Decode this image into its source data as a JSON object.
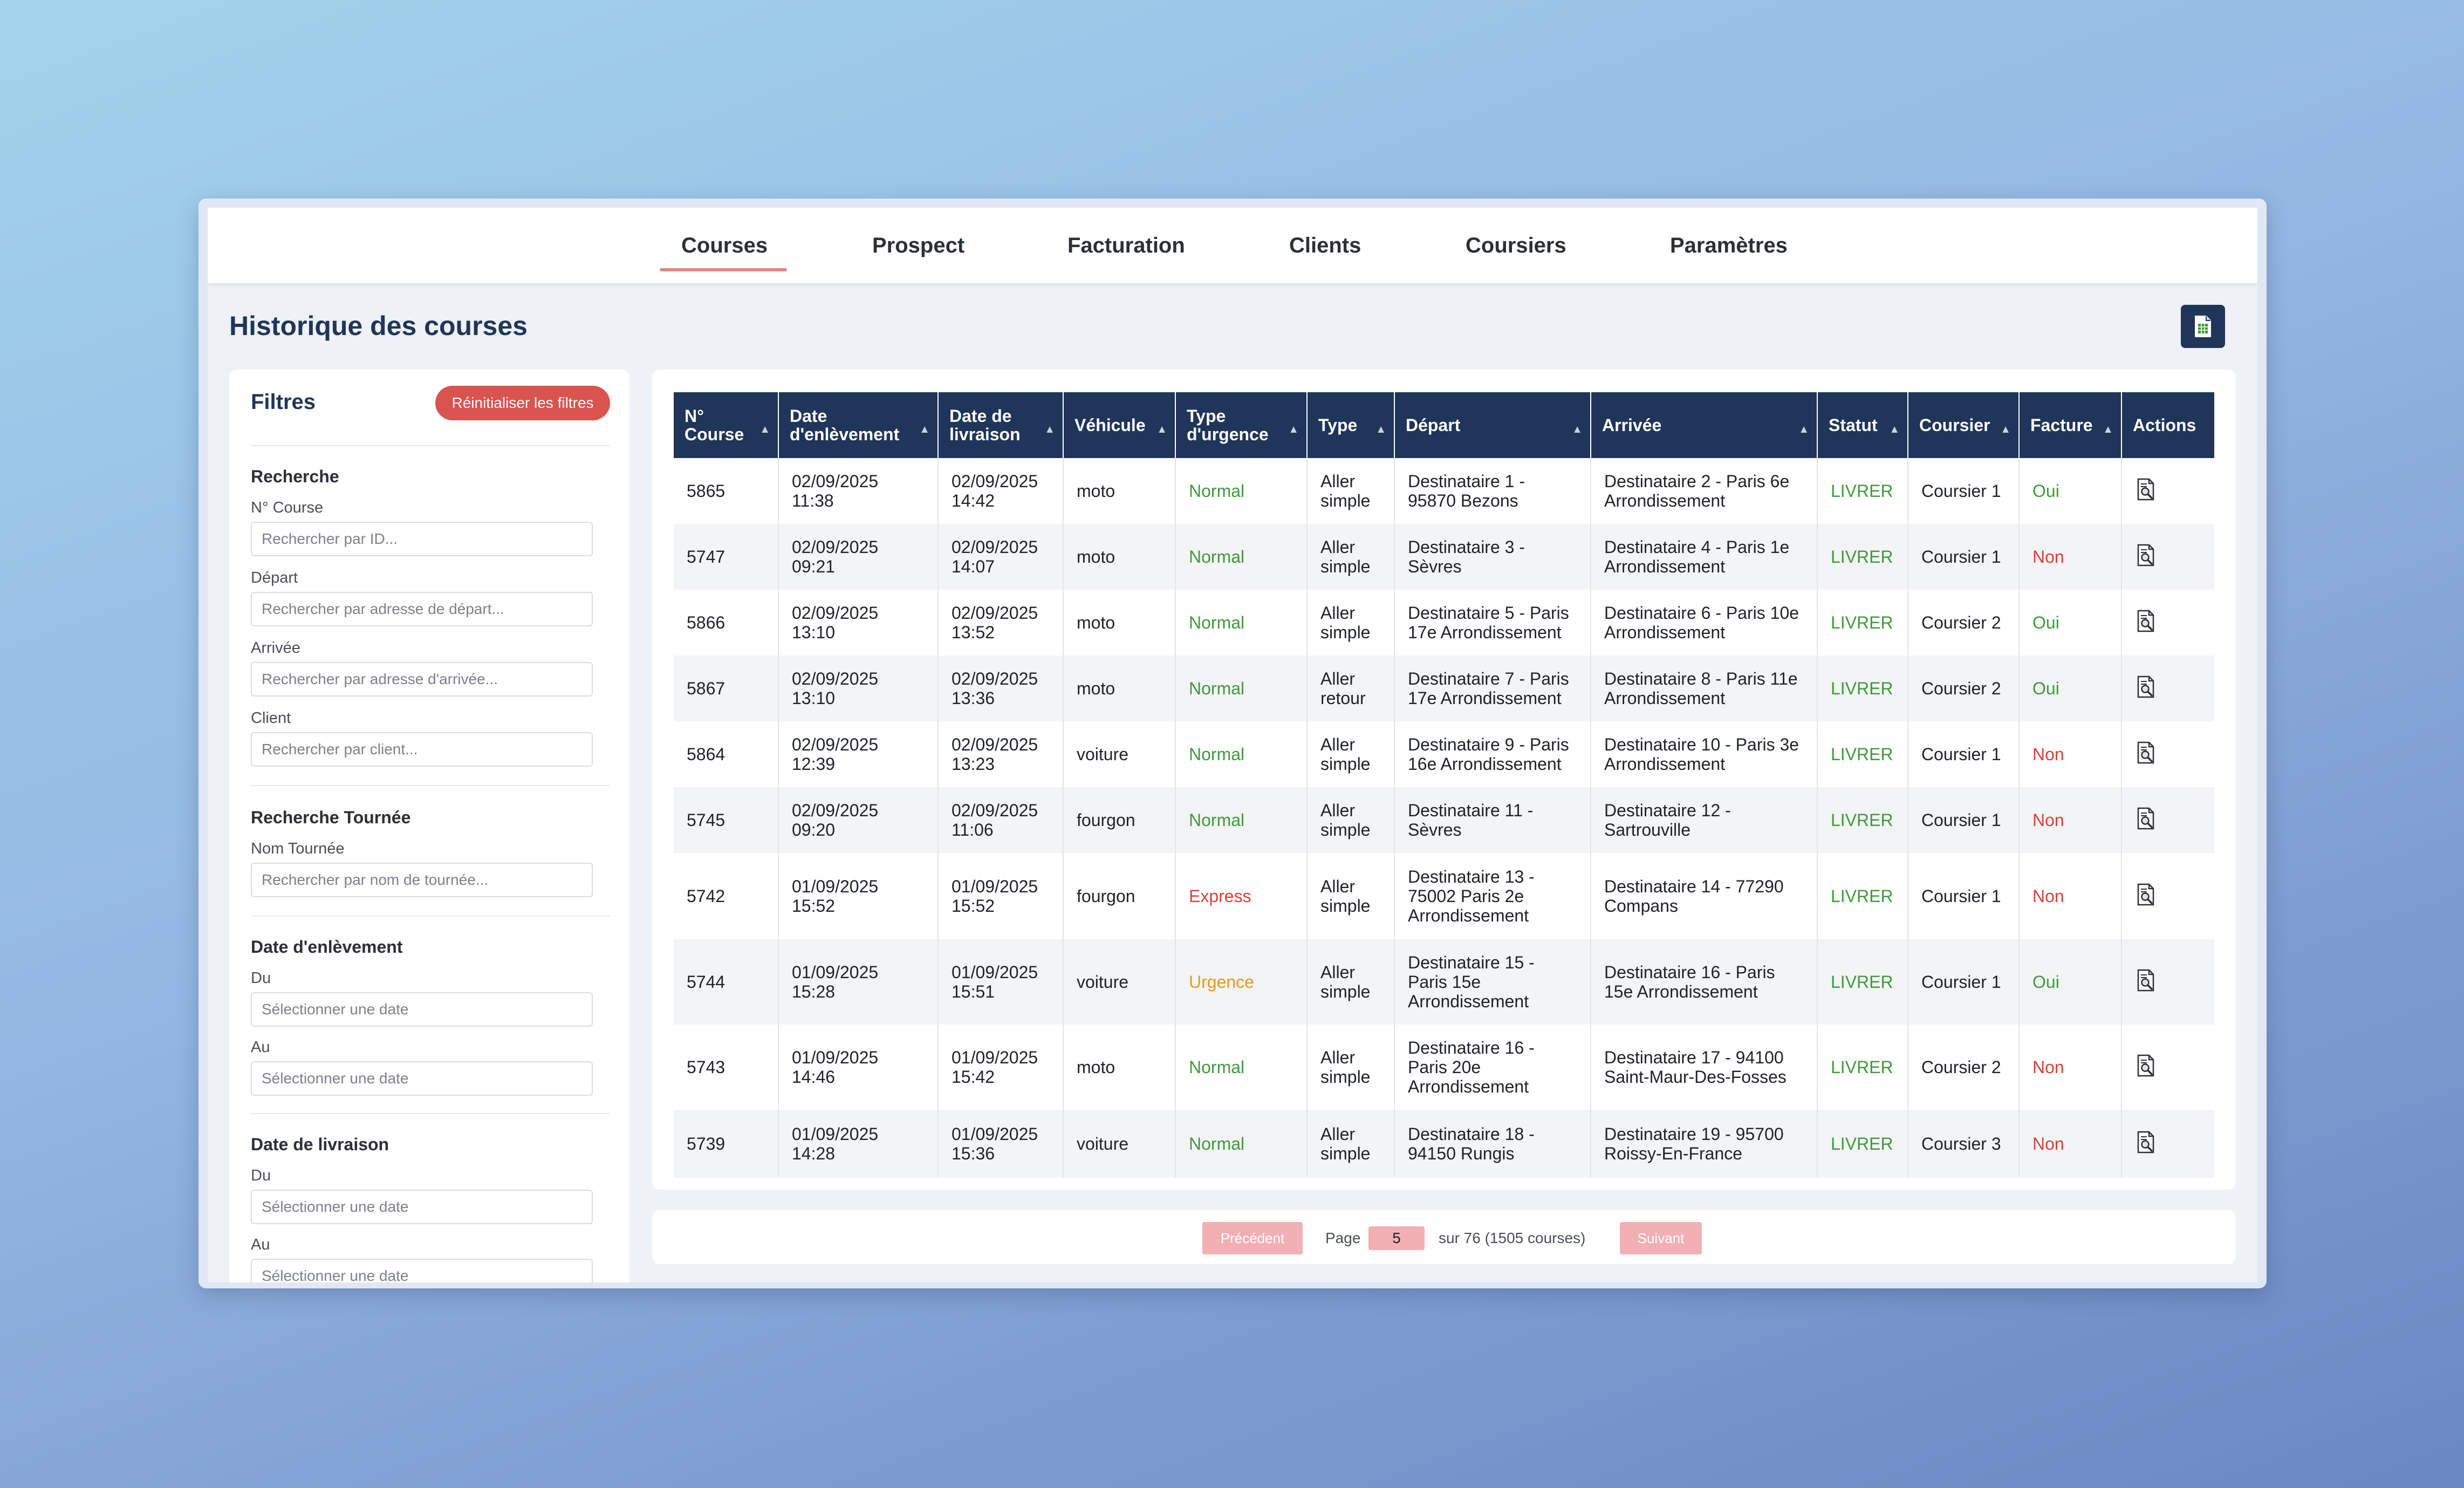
{
  "nav": {
    "tabs": [
      {
        "label": "Courses",
        "active": true
      },
      {
        "label": "Prospect"
      },
      {
        "label": "Facturation"
      },
      {
        "label": "Clients"
      },
      {
        "label": "Coursiers"
      },
      {
        "label": "Paramètres"
      }
    ]
  },
  "page": {
    "title": "Historique des courses",
    "export_icon": "spreadsheet-icon"
  },
  "filters": {
    "title": "Filtres",
    "reset_label": "Réinitialiser les filtres",
    "search": {
      "title": "Recherche",
      "course_label": "N° Course",
      "course_placeholder": "Rechercher par ID...",
      "depart_label": "Départ",
      "depart_placeholder": "Rechercher par adresse de départ...",
      "arrivee_label": "Arrivée",
      "arrivee_placeholder": "Rechercher par adresse d'arrivée...",
      "client_label": "Client",
      "client_placeholder": "Rechercher par client..."
    },
    "tournee": {
      "title": "Recherche Tournée",
      "label": "Nom Tournée",
      "placeholder": "Rechercher par nom de tournée..."
    },
    "pickup_date": {
      "title": "Date d'enlèvement",
      "from_label": "Du",
      "from_placeholder": "Sélectionner une date",
      "to_label": "Au",
      "to_placeholder": "Sélectionner une date"
    },
    "delivery_date": {
      "title": "Date de livraison",
      "from_label": "Du",
      "from_placeholder": "Sélectionner une date",
      "to_label": "Au",
      "to_placeholder": "Sélectionner une date"
    }
  },
  "table": {
    "headers": [
      "N° Course",
      "Date d'enlèvement",
      "Date de livraison",
      "Véhicule",
      "Type d'urgence",
      "Type",
      "Départ",
      "Arrivée",
      "Statut",
      "Coursier",
      "Facture",
      "Actions"
    ],
    "rows": [
      {
        "id": "5865",
        "pickup": "02/09/2025 11:38",
        "delivery": "02/09/2025 14:42",
        "vehicle": "moto",
        "urgency": "Normal",
        "type": "Aller simple",
        "depart": "Destinataire 1 - 95870 Bezons",
        "arrivee": "Destinataire 2 - Paris 6e Arrondissement",
        "status": "LIVRER",
        "courier": "Coursier 1",
        "invoice": "Oui"
      },
      {
        "id": "5747",
        "pickup": "02/09/2025 09:21",
        "delivery": "02/09/2025 14:07",
        "vehicle": "moto",
        "urgency": "Normal",
        "type": "Aller simple",
        "depart": "Destinataire 3 - Sèvres",
        "arrivee": "Destinataire 4 - Paris 1e Arrondissement",
        "status": "LIVRER",
        "courier": "Coursier 1",
        "invoice": "Non"
      },
      {
        "id": "5866",
        "pickup": "02/09/2025 13:10",
        "delivery": "02/09/2025 13:52",
        "vehicle": "moto",
        "urgency": "Normal",
        "type": "Aller simple",
        "depart": "Destinataire 5 - Paris 17e Arrondissement",
        "arrivee": "Destinataire 6 - Paris 10e Arrondissement",
        "status": "LIVRER",
        "courier": "Coursier 2",
        "invoice": "Oui"
      },
      {
        "id": "5867",
        "pickup": "02/09/2025 13:10",
        "delivery": "02/09/2025 13:36",
        "vehicle": "moto",
        "urgency": "Normal",
        "type": "Aller retour",
        "depart": "Destinataire 7 - Paris 17e Arrondissement",
        "arrivee": "Destinataire 8 - Paris 11e Arrondissement",
        "status": "LIVRER",
        "courier": "Coursier 2",
        "invoice": "Oui"
      },
      {
        "id": "5864",
        "pickup": "02/09/2025 12:39",
        "delivery": "02/09/2025 13:23",
        "vehicle": "voiture",
        "urgency": "Normal",
        "type": "Aller simple",
        "depart": "Destinataire 9 - Paris 16e Arrondissement",
        "arrivee": "Destinataire 10 - Paris 3e Arrondissement",
        "status": "LIVRER",
        "courier": "Coursier 1",
        "invoice": "Non"
      },
      {
        "id": "5745",
        "pickup": "02/09/2025 09:20",
        "delivery": "02/09/2025 11:06",
        "vehicle": "fourgon",
        "urgency": "Normal",
        "type": "Aller simple",
        "depart": "Destinataire 11 - Sèvres",
        "arrivee": "Destinataire 12 - Sartrouville",
        "status": "LIVRER",
        "courier": "Coursier 1",
        "invoice": "Non"
      },
      {
        "id": "5742",
        "pickup": "01/09/2025 15:52",
        "delivery": "01/09/2025 15:52",
        "vehicle": "fourgon",
        "urgency": "Express",
        "type": "Aller simple",
        "depart": "Destinataire 13 - 75002 Paris 2e Arrondissement",
        "arrivee": "Destinataire 14 - 77290 Compans",
        "status": "LIVRER",
        "courier": "Coursier 1",
        "invoice": "Non"
      },
      {
        "id": "5744",
        "pickup": "01/09/2025 15:28",
        "delivery": "01/09/2025 15:51",
        "vehicle": "voiture",
        "urgency": "Urgence",
        "type": "Aller simple",
        "depart": "Destinataire 15 - Paris 15e Arrondissement",
        "arrivee": "Destinataire 16 - Paris 15e Arrondissement",
        "status": "LIVRER",
        "courier": "Coursier 1",
        "invoice": "Oui"
      },
      {
        "id": "5743",
        "pickup": "01/09/2025 14:46",
        "delivery": "01/09/2025 15:42",
        "vehicle": "moto",
        "urgency": "Normal",
        "type": "Aller simple",
        "depart": "Destinataire 16 - Paris 20e Arrondissement",
        "arrivee": "Destinataire 17 - 94100 Saint-Maur-Des-Fosses",
        "status": "LIVRER",
        "courier": "Coursier 2",
        "invoice": "Non"
      },
      {
        "id": "5739",
        "pickup": "01/09/2025 14:28",
        "delivery": "01/09/2025 15:36",
        "vehicle": "voiture",
        "urgency": "Normal",
        "type": "Aller simple",
        "depart": "Destinataire 18 - 94150 Rungis",
        "arrivee": "Destinataire 19 - 95700 Roissy-En-France",
        "status": "LIVRER",
        "courier": "Coursier 3",
        "invoice": "Non"
      }
    ]
  },
  "pagination": {
    "prev_label": "Précédent",
    "page_label": "Page",
    "current_page": "5",
    "total_text": "sur 76 (1505 courses)",
    "next_label": "Suivant"
  },
  "colors": {
    "header_navy": "#1f3559",
    "accent_red": "#d9534f",
    "status_green": "#3f9a3a",
    "urgency_orange": "#e59a1d",
    "pager_pink": "#f2b0b4"
  }
}
